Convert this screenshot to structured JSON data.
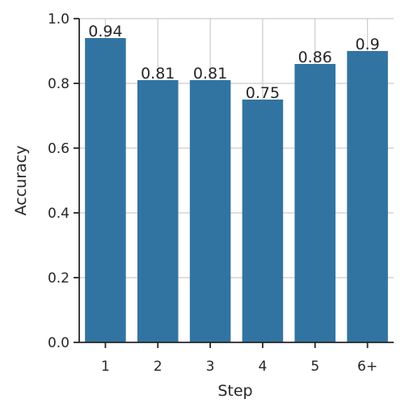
{
  "chart_data": {
    "type": "bar",
    "x_label": "Step",
    "y_label": "Accuracy",
    "categories": [
      "1",
      "2",
      "3",
      "4",
      "5",
      "6+"
    ],
    "values": [
      0.94,
      0.81,
      0.81,
      0.75,
      0.86,
      0.9
    ],
    "color": "#3274a1",
    "ylim": [
      0,
      1
    ],
    "yticks": [
      {
        "value": 0,
        "label": "0.0"
      },
      0.2,
      0.4,
      0.6,
      0.8,
      {
        "value": 1,
        "label": "1.0"
      }
    ],
    "grid": true
  }
}
